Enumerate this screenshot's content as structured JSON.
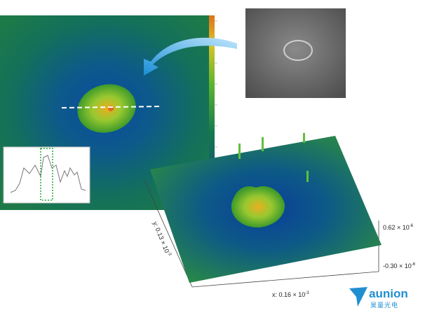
{
  "surface_plot": {
    "z_max_label": {
      "mantissa": "0.62 × 10",
      "exponent": "-6"
    },
    "z_min_label": {
      "mantissa": "-0.30 × 10",
      "exponent": "-6"
    },
    "x_axis_label": {
      "mantissa": "x: 0.16 × 10",
      "exponent": "-3"
    },
    "y_axis_label": {
      "mantissa": "y: 0.13 × 10",
      "exponent": "-3"
    }
  },
  "logo": {
    "name": "aunion",
    "subtitle": "昊量光电"
  }
}
